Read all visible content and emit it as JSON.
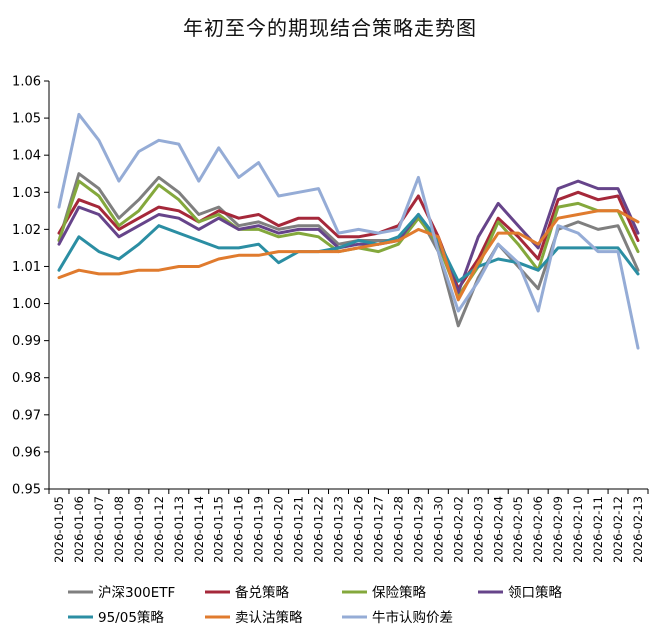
{
  "chart_data": {
    "type": "line",
    "title": "年初至今的期现结合策略走势图",
    "ylim": [
      0.95,
      1.06
    ],
    "yticks": [
      "0.95",
      "0.96",
      "0.97",
      "0.98",
      "0.99",
      "1.00",
      "1.01",
      "1.02",
      "1.03",
      "1.04",
      "1.05",
      "1.06"
    ],
    "x_tick_labels": [
      "2026-01-05",
      "2026-01-06",
      "2026-01-07",
      "2026-01-08",
      "2026-01-09",
      "2026-01-12",
      "2026-01-13",
      "2026-01-14",
      "2026-01-15",
      "2026-01-16",
      "2026-01-19",
      "2026-01-20",
      "2026-01-21",
      "2026-01-22",
      "2026-01-23",
      "2026-01-26",
      "2026-01-27",
      "2026-01-28",
      "2026-01-29",
      "2026-01-30",
      "2026-02-02",
      "2026-02-03",
      "2026-02-04",
      "2026-02-05",
      "2026-02-06",
      "2026-02-09",
      "2026-02-10",
      "2026-02-11",
      "2026-02-12",
      "2026-02-13"
    ],
    "x": [
      "2026-01-05",
      "2026-01-06",
      "2026-01-07",
      "2026-01-08",
      "2026-01-09",
      "2026-01-12",
      "2026-01-13",
      "2026-01-14",
      "2026-01-15",
      "2026-01-16",
      "2026-01-19",
      "2026-01-20",
      "2026-01-21",
      "2026-01-22",
      "2026-01-23",
      "2026-01-26",
      "2026-01-27",
      "2026-01-28",
      "2026-01-29",
      "2026-01-30",
      "2026-02-02",
      "2026-02-03",
      "2026-02-04",
      "2026-02-05",
      "2026-02-06",
      "2026-02-09",
      "2026-02-10",
      "2026-02-11",
      "2026-02-12",
      "2026-02-13"
    ],
    "grid": false,
    "legend_position": "bottom",
    "series": [
      {
        "name": "沪深300ETF",
        "color": "#7f7f7f",
        "values": [
          1.017,
          1.035,
          1.031,
          1.023,
          1.028,
          1.034,
          1.03,
          1.024,
          1.026,
          1.021,
          1.022,
          1.02,
          1.021,
          1.021,
          1.016,
          1.017,
          1.017,
          1.017,
          1.024,
          1.014,
          0.994,
          1.007,
          1.016,
          1.01,
          1.004,
          1.02,
          1.022,
          1.02,
          1.021,
          1.009
        ]
      },
      {
        "name": "备兑策略",
        "color": "#a5283a",
        "values": [
          1.019,
          1.028,
          1.026,
          1.02,
          1.023,
          1.026,
          1.025,
          1.022,
          1.025,
          1.023,
          1.024,
          1.021,
          1.023,
          1.023,
          1.018,
          1.018,
          1.019,
          1.021,
          1.029,
          1.018,
          1.004,
          1.012,
          1.023,
          1.018,
          1.012,
          1.028,
          1.03,
          1.028,
          1.029,
          1.017
        ]
      },
      {
        "name": "保险策略",
        "color": "#84a83c",
        "values": [
          1.017,
          1.033,
          1.029,
          1.021,
          1.025,
          1.032,
          1.028,
          1.022,
          1.024,
          1.02,
          1.02,
          1.018,
          1.019,
          1.018,
          1.014,
          1.015,
          1.014,
          1.016,
          1.023,
          1.016,
          1.002,
          1.01,
          1.022,
          1.016,
          1.009,
          1.026,
          1.027,
          1.025,
          1.025,
          1.014
        ]
      },
      {
        "name": "领口策略",
        "color": "#66448a",
        "values": [
          1.016,
          1.026,
          1.024,
          1.018,
          1.021,
          1.024,
          1.023,
          1.02,
          1.023,
          1.02,
          1.021,
          1.019,
          1.02,
          1.02,
          1.015,
          1.016,
          1.016,
          1.017,
          1.024,
          1.017,
          1.003,
          1.018,
          1.027,
          1.021,
          1.015,
          1.031,
          1.033,
          1.031,
          1.031,
          1.019
        ]
      },
      {
        "name": "95/05策略",
        "color": "#2b8ea3",
        "values": [
          1.009,
          1.018,
          1.014,
          1.012,
          1.016,
          1.021,
          1.019,
          1.017,
          1.015,
          1.015,
          1.016,
          1.011,
          1.014,
          1.014,
          1.015,
          1.017,
          1.016,
          1.018,
          1.024,
          1.017,
          1.006,
          1.01,
          1.012,
          1.011,
          1.009,
          1.015,
          1.015,
          1.015,
          1.015,
          1.008
        ]
      },
      {
        "name": "卖认沽策略",
        "color": "#e07b2e",
        "values": [
          1.007,
          1.009,
          1.008,
          1.008,
          1.009,
          1.009,
          1.01,
          1.01,
          1.012,
          1.013,
          1.013,
          1.014,
          1.014,
          1.014,
          1.014,
          1.015,
          1.016,
          1.017,
          1.02,
          1.018,
          1.001,
          1.011,
          1.019,
          1.019,
          1.016,
          1.023,
          1.024,
          1.025,
          1.025,
          1.022
        ]
      },
      {
        "name": "牛市认购价差",
        "color": "#95acd6",
        "values": [
          1.026,
          1.051,
          1.044,
          1.033,
          1.041,
          1.044,
          1.043,
          1.033,
          1.042,
          1.034,
          1.038,
          1.029,
          1.03,
          1.031,
          1.019,
          1.02,
          1.019,
          1.02,
          1.034,
          1.014,
          0.998,
          1.006,
          1.016,
          1.011,
          0.998,
          1.021,
          1.019,
          1.014,
          1.014,
          0.988
        ]
      }
    ]
  }
}
